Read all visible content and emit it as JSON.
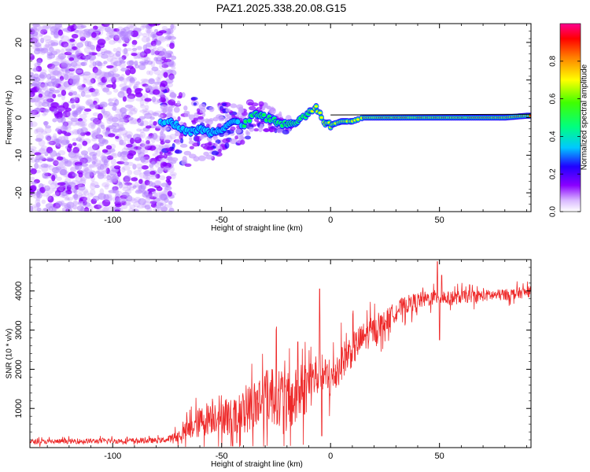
{
  "title": "PAZ1.2025.338.20.08.G15",
  "chart_data": [
    {
      "type": "heatmap",
      "name": "spectrogram",
      "xlabel": "Height of straight line (km)",
      "ylabel": "Frequency (Hz)",
      "xlim": [
        -138,
        92
      ],
      "ylim": [
        -25,
        25
      ],
      "xticks": [
        -100,
        -50,
        0,
        50
      ],
      "yticks": [
        -20,
        -10,
        0,
        10,
        20
      ],
      "colorbar": {
        "label": "Normalized spectral amplitude",
        "range": [
          0,
          1
        ],
        "ticks": [
          "0.0",
          "0.2",
          "0.4",
          "0.6",
          "0.8"
        ],
        "tick_values": [
          0,
          0.2,
          0.4,
          0.6,
          0.8
        ],
        "colors": [
          "#ffffff",
          "#c8a0ff",
          "#8a00ff",
          "#2000ff",
          "#00e0ff",
          "#00ff40",
          "#ffff00",
          "#ff8000",
          "#ff0000",
          "#ff0080"
        ]
      },
      "ridge": [
        [
          -75,
          -1
        ],
        [
          -70,
          -2
        ],
        [
          -65,
          -4
        ],
        [
          -60,
          -3
        ],
        [
          -55,
          -4
        ],
        [
          -50,
          -3
        ],
        [
          -45,
          -1
        ],
        [
          -40,
          -2
        ],
        [
          -35,
          1
        ],
        [
          -30,
          0
        ],
        [
          -25,
          -1
        ],
        [
          -20,
          -2
        ],
        [
          -15,
          -1
        ],
        [
          -10,
          1
        ],
        [
          -7,
          3
        ],
        [
          -5,
          1
        ],
        [
          -3,
          -1
        ],
        [
          0,
          -2
        ],
        [
          5,
          -1
        ],
        [
          10,
          -1
        ],
        [
          15,
          0
        ],
        [
          20,
          0
        ],
        [
          30,
          0
        ],
        [
          40,
          0
        ],
        [
          50,
          0
        ],
        [
          60,
          0
        ],
        [
          70,
          0
        ],
        [
          80,
          0
        ],
        [
          90,
          0.5
        ]
      ]
    },
    {
      "type": "line",
      "name": "snr",
      "xlabel": "Height of straight line (km)",
      "ylabel": "SNR (10 * v/v)",
      "xlim": [
        -138,
        92
      ],
      "ylim": [
        0,
        4800
      ],
      "xticks": [
        -100,
        -50,
        0,
        50
      ],
      "yticks": [
        1000,
        2000,
        3000,
        4000
      ],
      "color": "#ee2a2a",
      "envelope": [
        [
          -138,
          150
        ],
        [
          -120,
          160
        ],
        [
          -100,
          170
        ],
        [
          -80,
          180
        ],
        [
          -75,
          200
        ],
        [
          -70,
          300
        ],
        [
          -65,
          450
        ],
        [
          -60,
          650
        ],
        [
          -55,
          800
        ],
        [
          -50,
          900
        ],
        [
          -45,
          700
        ],
        [
          -40,
          900
        ],
        [
          -35,
          1100
        ],
        [
          -30,
          1300
        ],
        [
          -25,
          1400
        ],
        [
          -20,
          1100
        ],
        [
          -15,
          1300
        ],
        [
          -10,
          1650
        ],
        [
          -5,
          1900
        ],
        [
          0,
          1700
        ],
        [
          5,
          2200
        ],
        [
          10,
          2500
        ],
        [
          15,
          2800
        ],
        [
          20,
          3000
        ],
        [
          25,
          3200
        ],
        [
          30,
          3500
        ],
        [
          35,
          3650
        ],
        [
          40,
          3750
        ],
        [
          45,
          3800
        ],
        [
          50,
          3850
        ],
        [
          55,
          3800
        ],
        [
          60,
          3850
        ],
        [
          70,
          3880
        ],
        [
          80,
          3900
        ],
        [
          92,
          3980
        ]
      ],
      "noise": [
        [
          -138,
          60
        ],
        [
          -75,
          70
        ],
        [
          -70,
          150
        ],
        [
          -60,
          400
        ],
        [
          -50,
          500
        ],
        [
          -40,
          550
        ],
        [
          -30,
          800
        ],
        [
          -20,
          800
        ],
        [
          -10,
          700
        ],
        [
          0,
          500
        ],
        [
          10,
          450
        ],
        [
          20,
          350
        ],
        [
          30,
          250
        ],
        [
          45,
          200
        ],
        [
          55,
          180
        ],
        [
          70,
          150
        ],
        [
          92,
          140
        ]
      ],
      "spikes": [
        [
          -5,
          4050
        ],
        [
          -4,
          300
        ],
        [
          49,
          4750
        ],
        [
          50,
          2750
        ],
        [
          51,
          4400
        ],
        [
          -25,
          3000
        ],
        [
          -15,
          2700
        ]
      ]
    }
  ]
}
